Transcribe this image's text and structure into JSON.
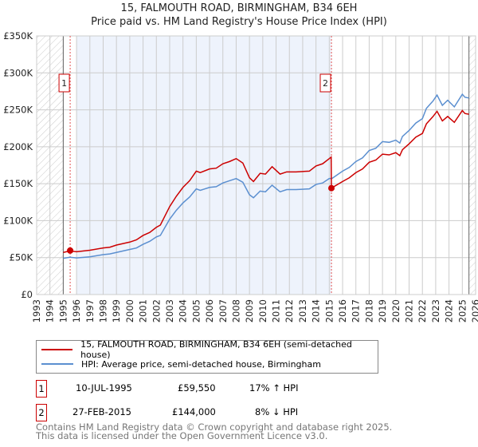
{
  "chart_data": {
    "type": "line",
    "title": "15, FALMOUTH ROAD, BIRMINGHAM, B34 6EH",
    "subtitle": "Price paid vs. HM Land Registry's House Price Index (HPI)",
    "xlim": [
      1993,
      2026
    ],
    "ylim": [
      0,
      350000
    ],
    "yticks": [
      {
        "v": 0,
        "label": "£0"
      },
      {
        "v": 50000,
        "label": "£50K"
      },
      {
        "v": 100000,
        "label": "£100K"
      },
      {
        "v": 150000,
        "label": "£150K"
      },
      {
        "v": 200000,
        "label": "£200K"
      },
      {
        "v": 250000,
        "label": "£250K"
      },
      {
        "v": 300000,
        "label": "£300K"
      },
      {
        "v": 350000,
        "label": "£350K"
      }
    ],
    "xticks": [
      "1993",
      "1994",
      "1995",
      "1996",
      "1997",
      "1998",
      "1999",
      "2000",
      "2001",
      "2002",
      "2003",
      "2004",
      "2005",
      "2006",
      "2007",
      "2008",
      "2009",
      "2010",
      "2011",
      "2012",
      "2013",
      "2014",
      "2015",
      "2016",
      "2017",
      "2018",
      "2019",
      "2020",
      "2021",
      "2022",
      "2023",
      "2024",
      "2025",
      "2026"
    ],
    "grid": true,
    "series": [
      {
        "name": "15, FALMOUTH ROAD, BIRMINGHAM, B34 6EH (semi-detached house)",
        "color": "#cc0000",
        "points": [
          [
            1995,
            57000
          ],
          [
            1995.5,
            59000
          ],
          [
            1996,
            58000
          ],
          [
            1997,
            60000
          ],
          [
            1998,
            63000
          ],
          [
            1998.5,
            64000
          ],
          [
            1999,
            67000
          ],
          [
            2000,
            71000
          ],
          [
            2000.5,
            74000
          ],
          [
            2001,
            80000
          ],
          [
            2001.5,
            84000
          ],
          [
            2002,
            91000
          ],
          [
            2002.3,
            94000
          ],
          [
            2003,
            119000
          ],
          [
            2003.5,
            133000
          ],
          [
            2004,
            145000
          ],
          [
            2004.5,
            154000
          ],
          [
            2005,
            167000
          ],
          [
            2005.3,
            165000
          ],
          [
            2006,
            170000
          ],
          [
            2006.5,
            171000
          ],
          [
            2007,
            177000
          ],
          [
            2007.5,
            180000
          ],
          [
            2008,
            184000
          ],
          [
            2008.5,
            178000
          ],
          [
            2009,
            158000
          ],
          [
            2009.3,
            153000
          ],
          [
            2009.8,
            164000
          ],
          [
            2010.2,
            163000
          ],
          [
            2010.7,
            173000
          ],
          [
            2011.3,
            163000
          ],
          [
            2011.8,
            166000
          ],
          [
            2012.5,
            166000
          ],
          [
            2013.5,
            167000
          ],
          [
            2014,
            174000
          ],
          [
            2014.5,
            177000
          ],
          [
            2015,
            184000
          ],
          [
            2015.14,
            186000
          ],
          [
            2015.16,
            144000
          ],
          [
            2016,
            153000
          ],
          [
            2016.5,
            158000
          ],
          [
            2017,
            165000
          ],
          [
            2017.5,
            170000
          ],
          [
            2018,
            179000
          ],
          [
            2018.5,
            182000
          ],
          [
            2019,
            190000
          ],
          [
            2019.5,
            189000
          ],
          [
            2020,
            192000
          ],
          [
            2020.3,
            188000
          ],
          [
            2020.5,
            196000
          ],
          [
            2021,
            204000
          ],
          [
            2021.5,
            213000
          ],
          [
            2022,
            218000
          ],
          [
            2022.3,
            231000
          ],
          [
            2022.8,
            241000
          ],
          [
            2023.1,
            248000
          ],
          [
            2023.5,
            235000
          ],
          [
            2023.9,
            241000
          ],
          [
            2024.4,
            233000
          ],
          [
            2025,
            249000
          ],
          [
            2025.2,
            245000
          ],
          [
            2025.5,
            244000
          ]
        ]
      },
      {
        "name": "HPI: Average price, semi-detached house, Birmingham",
        "color": "#5b8fd0",
        "points": [
          [
            1995,
            49000
          ],
          [
            1995.5,
            50500
          ],
          [
            1996,
            49500
          ],
          [
            1997,
            51000
          ],
          [
            1998,
            54000
          ],
          [
            1998.5,
            55000
          ],
          [
            1999,
            57000
          ],
          [
            2000,
            61000
          ],
          [
            2000.5,
            63000
          ],
          [
            2001,
            68000
          ],
          [
            2001.5,
            72000
          ],
          [
            2002,
            78000
          ],
          [
            2002.3,
            80000
          ],
          [
            2003,
            102000
          ],
          [
            2003.5,
            114000
          ],
          [
            2004,
            124000
          ],
          [
            2004.5,
            132000
          ],
          [
            2005,
            143000
          ],
          [
            2005.3,
            141000
          ],
          [
            2006,
            145000
          ],
          [
            2006.5,
            146000
          ],
          [
            2007,
            151000
          ],
          [
            2007.5,
            154000
          ],
          [
            2008,
            157000
          ],
          [
            2008.5,
            152000
          ],
          [
            2009,
            135000
          ],
          [
            2009.3,
            131000
          ],
          [
            2009.8,
            140000
          ],
          [
            2010.2,
            139000
          ],
          [
            2010.7,
            148000
          ],
          [
            2011.3,
            139000
          ],
          [
            2011.8,
            142000
          ],
          [
            2012.5,
            142000
          ],
          [
            2013.5,
            143000
          ],
          [
            2014,
            149000
          ],
          [
            2014.5,
            151000
          ],
          [
            2015,
            157000
          ],
          [
            2015.2,
            157000
          ],
          [
            2016,
            167000
          ],
          [
            2016.5,
            172000
          ],
          [
            2017,
            180000
          ],
          [
            2017.5,
            185000
          ],
          [
            2018,
            195000
          ],
          [
            2018.5,
            198000
          ],
          [
            2019,
            207000
          ],
          [
            2019.5,
            206000
          ],
          [
            2020,
            209000
          ],
          [
            2020.3,
            205000
          ],
          [
            2020.5,
            214000
          ],
          [
            2021,
            222000
          ],
          [
            2021.5,
            232000
          ],
          [
            2022,
            238000
          ],
          [
            2022.3,
            252000
          ],
          [
            2022.8,
            262000
          ],
          [
            2023.1,
            270000
          ],
          [
            2023.5,
            256000
          ],
          [
            2023.9,
            263000
          ],
          [
            2024.4,
            254000
          ],
          [
            2025,
            271000
          ],
          [
            2025.2,
            267000
          ],
          [
            2025.5,
            266000
          ]
        ]
      }
    ],
    "sales": [
      {
        "id": "1",
        "x": 1995.52,
        "y": 59550,
        "date": "10-JUL-1995",
        "price": "£59,550",
        "hpi": "17% ↑ HPI"
      },
      {
        "id": "2",
        "x": 2015.16,
        "y": 144000,
        "date": "27-FEB-2015",
        "price": "£144,000",
        "hpi": "8% ↓ HPI"
      }
    ],
    "shaded_range": [
      1996,
      2015.16
    ],
    "hatched_ranges": [
      [
        1993,
        1995
      ],
      [
        2025.5,
        2026
      ]
    ]
  },
  "footer": {
    "line1": "Contains HM Land Registry data © Crown copyright and database right 2025.",
    "line2": "This data is licensed under the Open Government Licence v3.0."
  }
}
